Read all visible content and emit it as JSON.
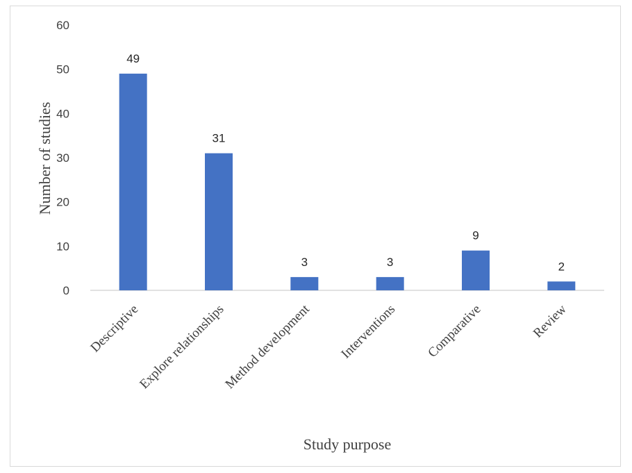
{
  "chart_data": {
    "type": "bar",
    "categories": [
      "Descriptive",
      "Explore relationships",
      "Method development",
      "Interventions",
      "Comparative",
      "Review"
    ],
    "values": [
      49,
      31,
      3,
      3,
      9,
      2
    ],
    "title": "",
    "xlabel": "Study purpose",
    "ylabel": "Number of studies",
    "ylim": [
      0,
      60
    ],
    "yticks": [
      0,
      10,
      20,
      30,
      40,
      50,
      60
    ],
    "grid": false,
    "legend": "none",
    "bar_color": "#4472C4",
    "axis_color": "#d9d9d9"
  }
}
